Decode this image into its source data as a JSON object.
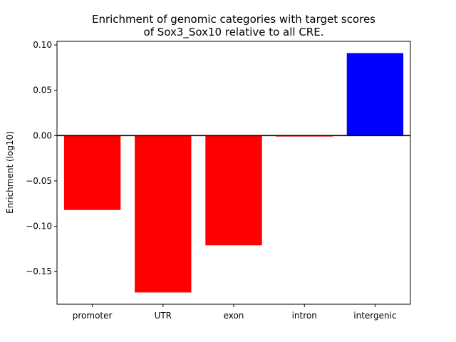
{
  "chart_data": {
    "type": "bar",
    "title_lines": [
      "Enrichment of genomic categories with target scores",
      "of Sox3_Sox10 relative to all CRE."
    ],
    "xlabel": "",
    "ylabel": "Enrichment (log10)",
    "categories": [
      "promoter",
      "UTR",
      "exon",
      "intron",
      "intergenic"
    ],
    "values": [
      -0.082,
      -0.173,
      -0.121,
      -0.001,
      0.091
    ],
    "colors": [
      "#ff0000",
      "#ff0000",
      "#ff0000",
      "#ff0000",
      "#0000ff"
    ],
    "ylim": [
      -0.186,
      0.104
    ],
    "yticks": [
      0.1,
      0.05,
      0.0,
      -0.05,
      -0.1,
      -0.15
    ],
    "ytick_labels": [
      "0.10",
      "0.05",
      "0.00",
      "−0.05",
      "−0.10",
      "−0.15"
    ],
    "zero_line": true,
    "grid": false,
    "legend": "none"
  }
}
